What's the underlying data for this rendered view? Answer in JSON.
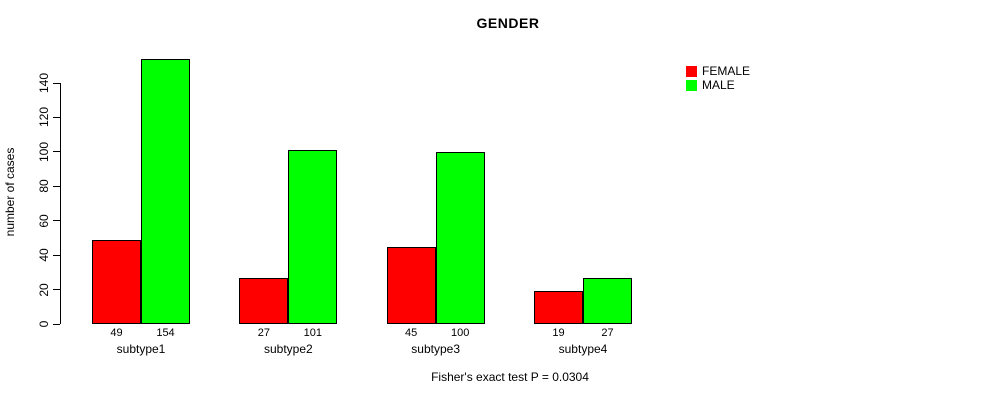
{
  "chart_data": {
    "type": "bar",
    "title": "GENDER",
    "xlabel": "",
    "ylabel": "number of cases",
    "categories": [
      "subtype1",
      "subtype2",
      "subtype3",
      "subtype4"
    ],
    "series": [
      {
        "name": "FEMALE",
        "color": "#ff0000",
        "values": [
          49,
          27,
          45,
          19
        ]
      },
      {
        "name": "MALE",
        "color": "#00ff00",
        "values": [
          154,
          101,
          100,
          27
        ]
      }
    ],
    "bar_value_labels": {
      "FEMALE": [
        "49",
        "27",
        "45",
        "19"
      ],
      "MALE": [
        "154",
        "101",
        "100",
        "27"
      ]
    },
    "y_ticks": [
      0,
      20,
      40,
      60,
      80,
      100,
      120,
      140
    ],
    "ylim": [
      0,
      140
    ],
    "grid": false,
    "legend_position": "top-right",
    "legend_entries": [
      "FEMALE",
      "MALE"
    ],
    "footnote": "Fisher's exact test P = 0.0304",
    "colors": {
      "female": "#ff0000",
      "male": "#00ff00",
      "axis": "#000000",
      "background": "#ffffff"
    }
  }
}
